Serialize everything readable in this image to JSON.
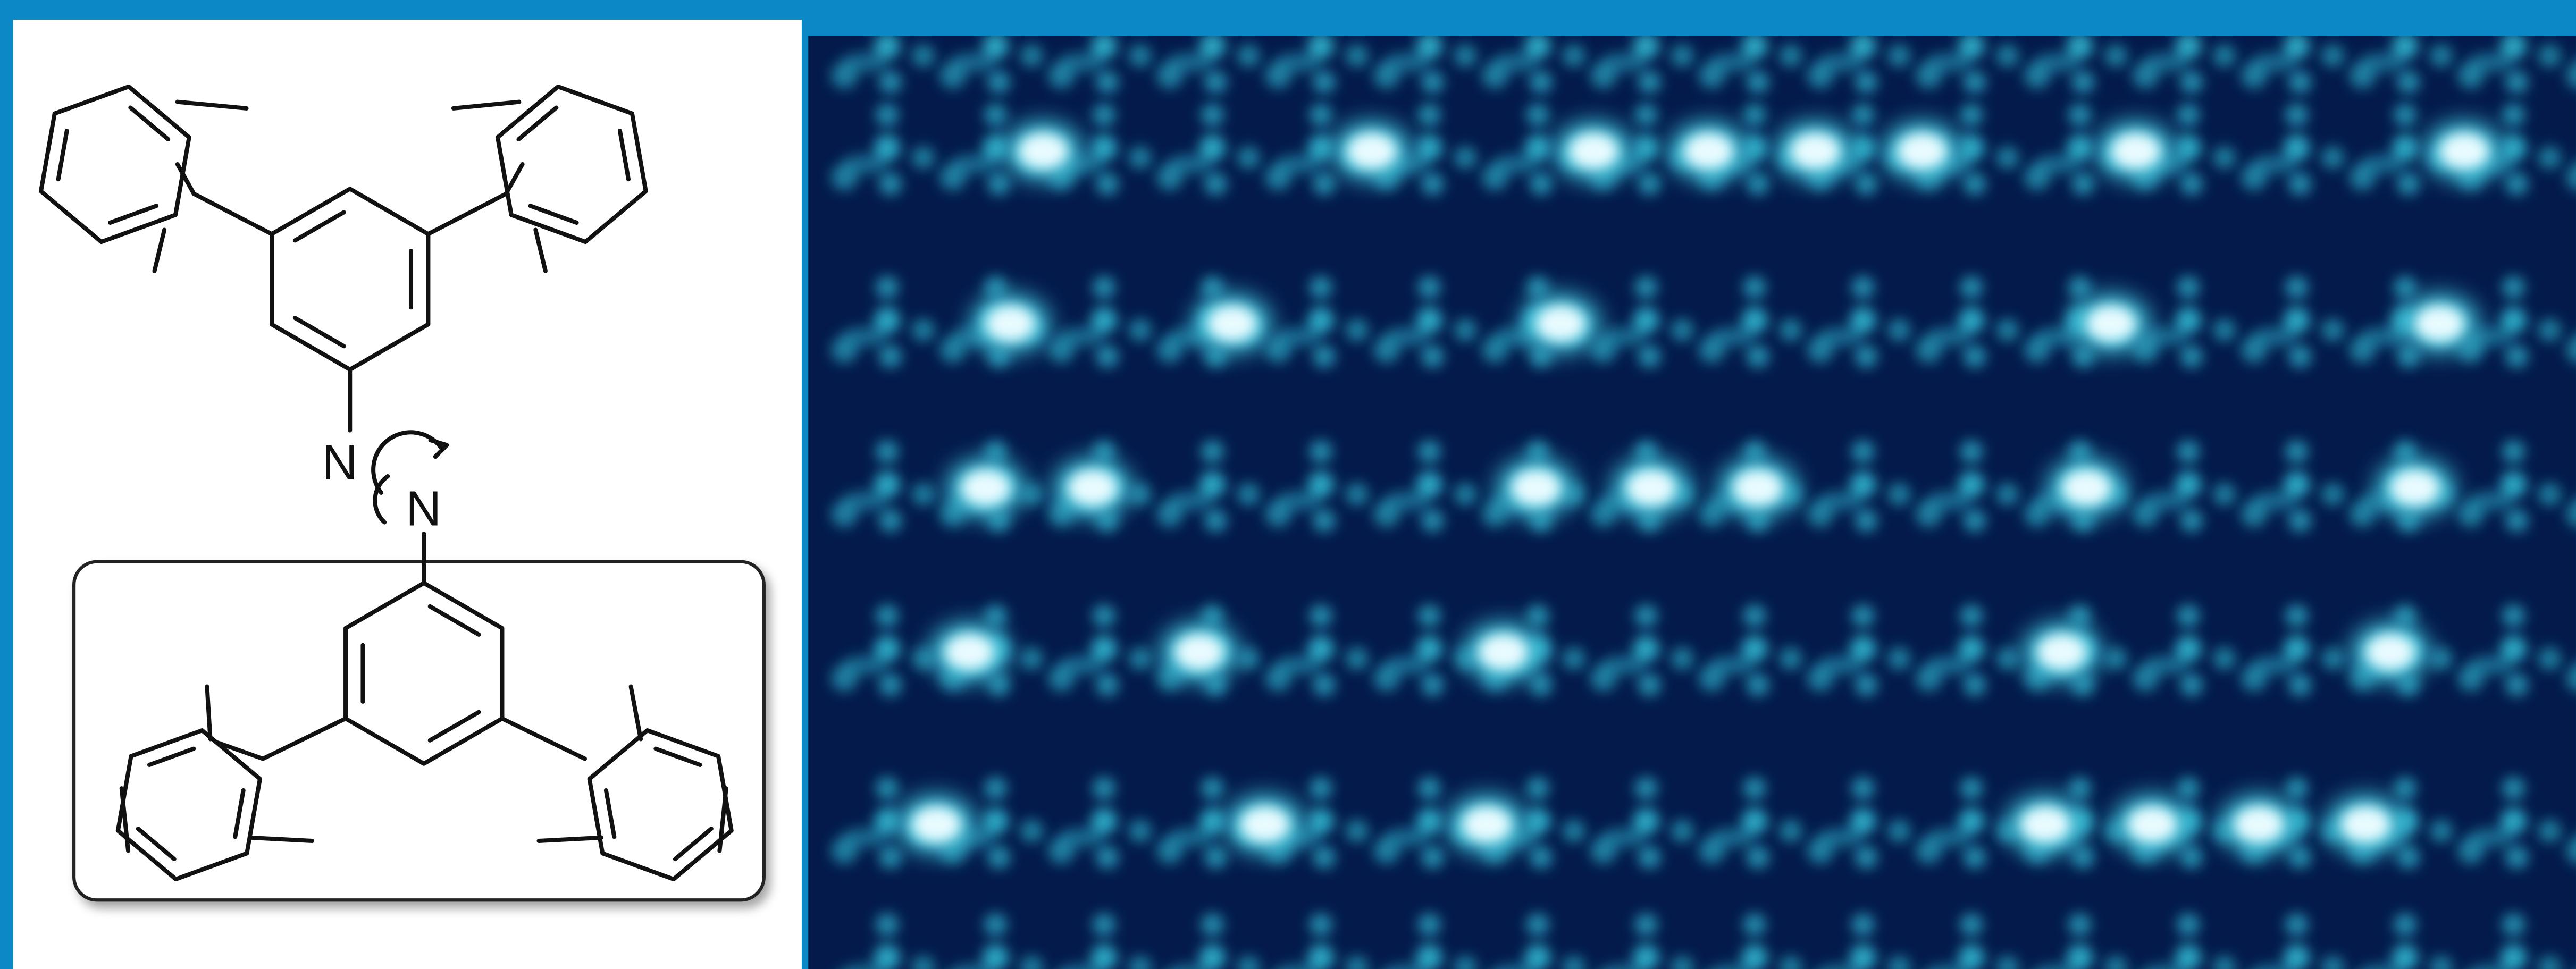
{
  "structure": {
    "atoms": [
      "N",
      "N"
    ]
  }
}
